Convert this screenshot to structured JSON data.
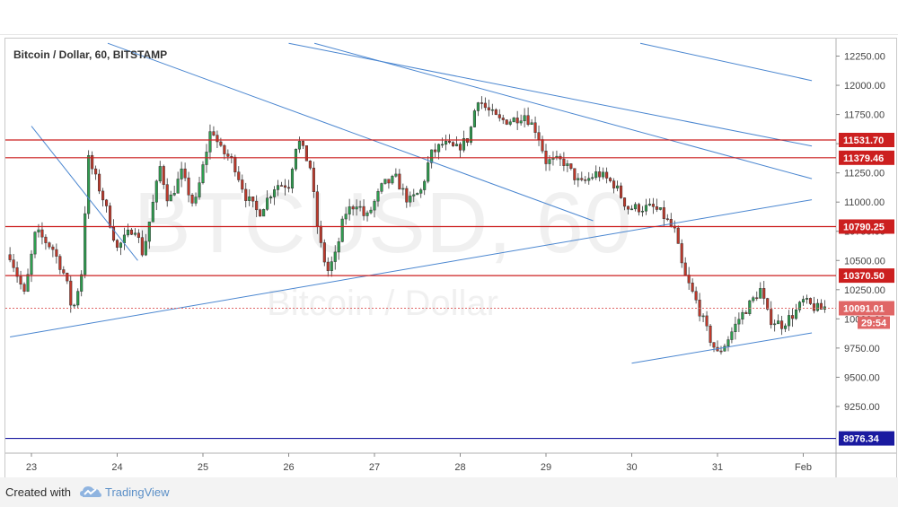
{
  "footer": {
    "created_with": "Created with",
    "brand": "TradingView"
  },
  "chart_data": {
    "type": "candlestick",
    "title": "Bitcoin / Dollar, 60, BITSTAMP",
    "watermark": {
      "symbol": "BTCUSD, 60",
      "description": "Bitcoin / Dollar"
    },
    "ylim": [
      8850,
      12400
    ],
    "y_ticks": [
      9250,
      9500,
      9750,
      10000,
      10250,
      10500,
      10750,
      11000,
      11250,
      11500,
      11750,
      12000,
      12250
    ],
    "y_tick_labels": [
      "9250.00",
      "9500.00",
      "9750.00",
      "10000.00",
      "10250.00",
      "10500.00",
      "10750.00",
      "11000.00",
      "11250.00",
      "11500.00",
      "11750.00",
      "12000.00",
      "12250.00"
    ],
    "x_labels": [
      "23",
      "24",
      "25",
      "26",
      "27",
      "28",
      "29",
      "30",
      "31",
      "Feb"
    ],
    "colors": {
      "up": "#2e9e4f",
      "down": "#c0392b",
      "level_red": "#cc1f1f",
      "level_blue": "#1a1aa0",
      "trend": "#4a86d0",
      "current": "#e06666"
    },
    "horizontal_levels": [
      {
        "value": 11531.7,
        "label": "11531.70",
        "color": "#cc1f1f"
      },
      {
        "value": 11379.46,
        "label": "11379.46",
        "color": "#cc1f1f"
      },
      {
        "value": 10790.25,
        "label": "10790.25",
        "color": "#cc1f1f"
      },
      {
        "value": 10370.5,
        "label": "10370.50",
        "color": "#cc1f1f"
      },
      {
        "value": 8976.34,
        "label": "8976.34",
        "color": "#1a1aa0"
      }
    ],
    "current_price": {
      "value": 10091.01,
      "label": "10091.01",
      "countdown": "29:54"
    },
    "trendlines": [
      {
        "x1": 0.0,
        "y1": 11650,
        "x2": 1.24,
        "y2": 10500
      },
      {
        "x1": 0.89,
        "y1": 12360,
        "x2": 6.55,
        "y2": 10840
      },
      {
        "x1": -0.25,
        "y1": 9845,
        "x2": 9.1,
        "y2": 11020
      },
      {
        "x1": 3.0,
        "y1": 12360,
        "x2": 9.1,
        "y2": 11480
      },
      {
        "x1": 3.3,
        "y1": 12360,
        "x2": 9.1,
        "y2": 11200
      },
      {
        "x1": 7.1,
        "y1": 12360,
        "x2": 9.1,
        "y2": 12040
      },
      {
        "x1": 7.0,
        "y1": 9620,
        "x2": 9.1,
        "y2": 9880
      }
    ],
    "waypoints": [
      [
        -0.25,
        10550
      ],
      [
        -0.08,
        10200
      ],
      [
        0.05,
        10750
      ],
      [
        0.25,
        10600
      ],
      [
        0.4,
        10350
      ],
      [
        0.48,
        10050
      ],
      [
        0.6,
        10450
      ],
      [
        0.65,
        11400
      ],
      [
        0.85,
        11000
      ],
      [
        1.0,
        10600
      ],
      [
        1.2,
        10800
      ],
      [
        1.3,
        10550
      ],
      [
        1.5,
        11300
      ],
      [
        1.6,
        11000
      ],
      [
        1.75,
        11250
      ],
      [
        1.9,
        10950
      ],
      [
        2.1,
        11650
      ],
      [
        2.2,
        11450
      ],
      [
        2.35,
        11350
      ],
      [
        2.5,
        11050
      ],
      [
        2.65,
        10900
      ],
      [
        2.85,
        11150
      ],
      [
        3.0,
        11150
      ],
      [
        3.1,
        11550
      ],
      [
        3.25,
        11300
      ],
      [
        3.35,
        10700
      ],
      [
        3.45,
        10400
      ],
      [
        3.55,
        10550
      ],
      [
        3.65,
        10900
      ],
      [
        3.8,
        11000
      ],
      [
        3.9,
        10850
      ],
      [
        4.1,
        11150
      ],
      [
        4.25,
        11200
      ],
      [
        4.4,
        11000
      ],
      [
        4.55,
        11100
      ],
      [
        4.65,
        11400
      ],
      [
        4.8,
        11500
      ],
      [
        4.95,
        11450
      ],
      [
        5.1,
        11550
      ],
      [
        5.2,
        11900
      ],
      [
        5.3,
        11800
      ],
      [
        5.45,
        11700
      ],
      [
        5.6,
        11700
      ],
      [
        5.75,
        11750
      ],
      [
        5.9,
        11600
      ],
      [
        6.0,
        11350
      ],
      [
        6.2,
        11350
      ],
      [
        6.4,
        11150
      ],
      [
        6.6,
        11250
      ],
      [
        6.8,
        11150
      ],
      [
        6.95,
        10950
      ],
      [
        7.1,
        10950
      ],
      [
        7.25,
        10950
      ],
      [
        7.35,
        10900
      ],
      [
        7.5,
        10750
      ],
      [
        7.6,
        10400
      ],
      [
        7.75,
        10150
      ],
      [
        7.9,
        9850
      ],
      [
        8.0,
        9700
      ],
      [
        8.1,
        9800
      ],
      [
        8.25,
        10000
      ],
      [
        8.4,
        10150
      ],
      [
        8.5,
        10250
      ],
      [
        8.6,
        10000
      ],
      [
        8.75,
        9950
      ],
      [
        8.9,
        10050
      ],
      [
        9.0,
        10150
      ],
      [
        9.12,
        10100
      ],
      [
        9.2,
        10080
      ],
      [
        9.25,
        10100
      ]
    ]
  }
}
